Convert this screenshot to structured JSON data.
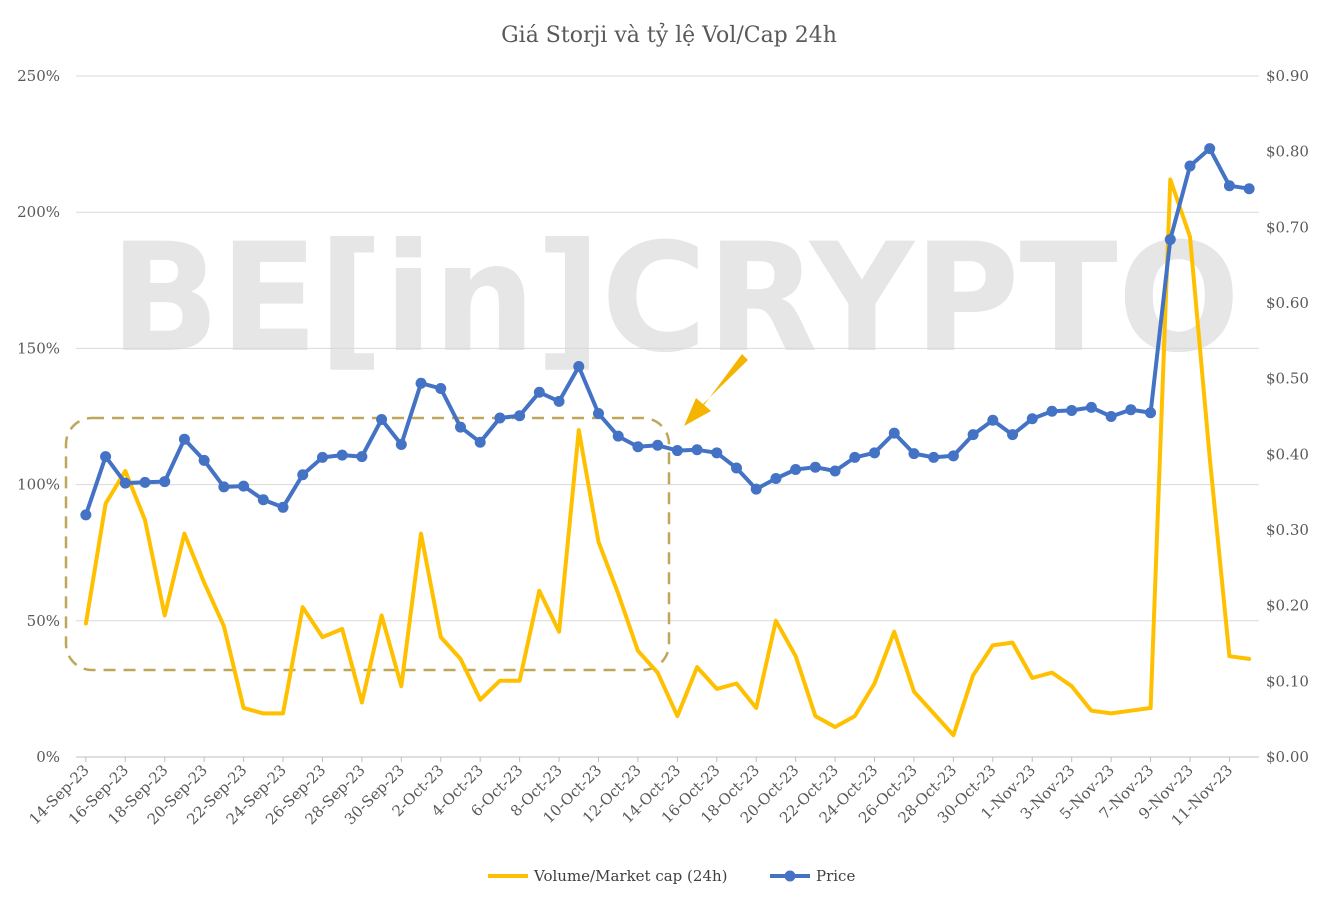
{
  "chart_data": {
    "type": "line",
    "title": "Giá Storji và tỷ lệ Vol/Cap 24h",
    "watermark": "BE[in]CRYPTO",
    "legend_position": "bottom",
    "grid": true,
    "x_tick_labels": [
      "14-Sep-23",
      "16-Sep-23",
      "18-Sep-23",
      "20-Sep-23",
      "22-Sep-23",
      "24-Sep-23",
      "26-Sep-23",
      "28-Sep-23",
      "30-Sep-23",
      "2-Oct-23",
      "4-Oct-23",
      "6-Oct-23",
      "8-Oct-23",
      "10-Oct-23",
      "12-Oct-23",
      "14-Oct-23",
      "16-Oct-23",
      "18-Oct-23",
      "20-Oct-23",
      "22-Oct-23",
      "24-Oct-23",
      "26-Oct-23",
      "28-Oct-23",
      "30-Oct-23",
      "1-Nov-23",
      "3-Nov-23",
      "5-Nov-23",
      "7-Nov-23",
      "9-Nov-23",
      "11-Nov-23"
    ],
    "y_left": {
      "ticks": [
        "0%",
        "50%",
        "100%",
        "150%",
        "200%",
        "250%"
      ],
      "range": [
        0,
        250
      ]
    },
    "y_right": {
      "ticks": [
        "$0.00",
        "$0.10",
        "$0.20",
        "$0.30",
        "$0.40",
        "$0.50",
        "$0.60",
        "$0.70",
        "$0.80",
        "$0.90"
      ],
      "range": [
        0,
        0.9
      ]
    },
    "series": [
      {
        "name": "Volume/Market cap (24h)",
        "axis": "left",
        "color": "#FFC000",
        "values": [
          49,
          93,
          105,
          87,
          52,
          82,
          64,
          48,
          18,
          16,
          16,
          55,
          44,
          47,
          20,
          52,
          26,
          82,
          44,
          36,
          21,
          28,
          28,
          61,
          46,
          120,
          79,
          60,
          39,
          31,
          15,
          33,
          25,
          27,
          18,
          50,
          37,
          15,
          11,
          15,
          27,
          46,
          24,
          16,
          8,
          30,
          41,
          42,
          29,
          31,
          26,
          17,
          16,
          17,
          18,
          212,
          191,
          110,
          37,
          36
        ]
      },
      {
        "name": "Price",
        "axis": "right",
        "color": "#4472C4",
        "values": [
          0.32,
          0.397,
          0.362,
          0.363,
          0.364,
          0.42,
          0.392,
          0.357,
          0.358,
          0.34,
          0.33,
          0.373,
          0.396,
          0.399,
          0.397,
          0.446,
          0.413,
          0.494,
          0.487,
          0.436,
          0.416,
          0.448,
          0.451,
          0.482,
          0.47,
          0.516,
          0.454,
          0.424,
          0.41,
          0.412,
          0.405,
          0.406,
          0.402,
          0.382,
          0.354,
          0.368,
          0.38,
          0.383,
          0.378,
          0.396,
          0.402,
          0.428,
          0.401,
          0.396,
          0.398,
          0.426,
          0.445,
          0.426,
          0.447,
          0.457,
          0.458,
          0.462,
          0.45,
          0.459,
          0.455,
          0.684,
          0.781,
          0.804,
          0.755,
          0.751
        ]
      }
    ]
  }
}
